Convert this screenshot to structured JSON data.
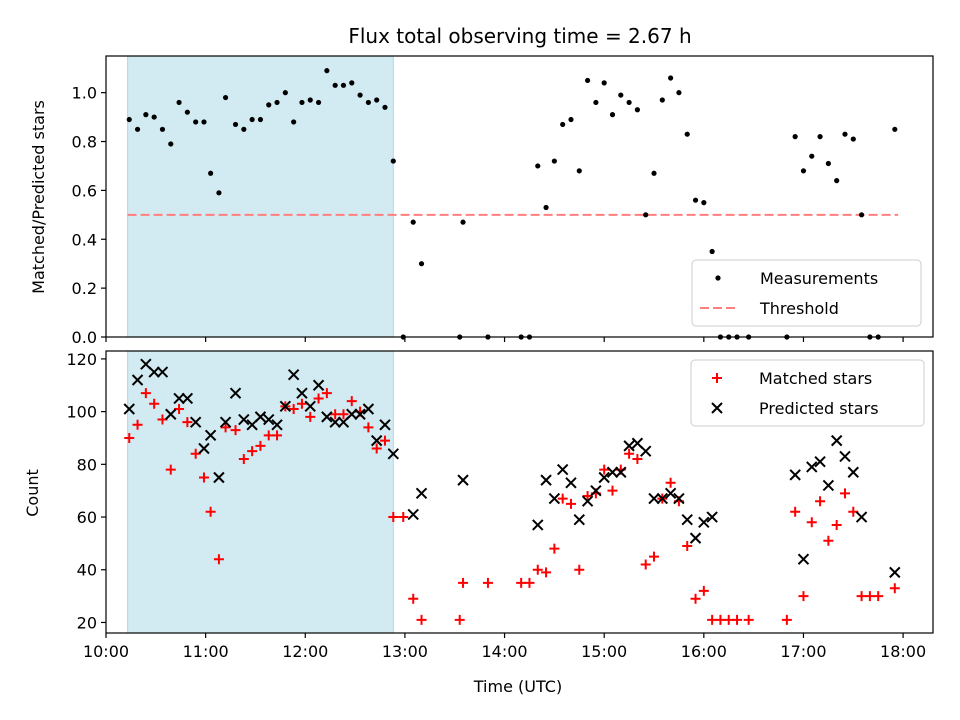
{
  "figure": {
    "title": "Flux total observing time = 2.67 h",
    "xlabel": "Time (UTC)"
  },
  "colors": {
    "shade": "#add8e6",
    "measurement": "#000000",
    "threshold": "#ff7f7f",
    "matched": "#ff0000",
    "predicted": "#000000"
  },
  "chart_data": [
    {
      "type": "scatter",
      "ylabel": "Matched/Predicted stars",
      "xlim": [
        "10:00",
        "18:18"
      ],
      "ylim": [
        0,
        1.15
      ],
      "x_ticks": [
        "10:00",
        "11:00",
        "12:00",
        "13:00",
        "14:00",
        "15:00",
        "16:00",
        "17:00",
        "18:00"
      ],
      "y_ticks": [
        "0.0",
        "0.2",
        "0.4",
        "0.6",
        "0.8",
        "1.0"
      ],
      "shaded_span": [
        "10:13",
        "12:53"
      ],
      "threshold": {
        "name": "Threshold",
        "value": 0.5,
        "x": [
          "10:13",
          "17:57"
        ]
      },
      "legend": {
        "position": "lower right",
        "entries": [
          "Measurements",
          "Threshold"
        ]
      },
      "series": [
        {
          "name": "Measurements",
          "points": [
            [
              "10:14",
              0.89
            ],
            [
              "10:19",
              0.85
            ],
            [
              "10:24",
              0.91
            ],
            [
              "10:29",
              0.9
            ],
            [
              "10:34",
              0.85
            ],
            [
              "10:39",
              0.79
            ],
            [
              "10:44",
              0.96
            ],
            [
              "10:49",
              0.92
            ],
            [
              "10:54",
              0.88
            ],
            [
              "10:59",
              0.88
            ],
            [
              "11:03",
              0.67
            ],
            [
              "11:08",
              0.59
            ],
            [
              "11:12",
              0.98
            ],
            [
              "11:18",
              0.87
            ],
            [
              "11:23",
              0.85
            ],
            [
              "11:28",
              0.89
            ],
            [
              "11:33",
              0.89
            ],
            [
              "11:38",
              0.95
            ],
            [
              "11:43",
              0.96
            ],
            [
              "11:48",
              1.0
            ],
            [
              "11:53",
              0.88
            ],
            [
              "11:58",
              0.96
            ],
            [
              "12:03",
              0.97
            ],
            [
              "12:08",
              0.96
            ],
            [
              "12:13",
              1.09
            ],
            [
              "12:18",
              1.03
            ],
            [
              "12:23",
              1.03
            ],
            [
              "12:28",
              1.04
            ],
            [
              "12:33",
              0.99
            ],
            [
              "12:38",
              0.96
            ],
            [
              "12:43",
              0.97
            ],
            [
              "12:48",
              0.94
            ],
            [
              "12:53",
              0.72
            ],
            [
              "12:59",
              0.0
            ],
            [
              "13:05",
              0.47
            ],
            [
              "13:10",
              0.3
            ],
            [
              "13:33",
              0.0
            ],
            [
              "13:35",
              0.47
            ],
            [
              "13:50",
              0.0
            ],
            [
              "14:10",
              0.0
            ],
            [
              "14:15",
              0.0
            ],
            [
              "14:20",
              0.7
            ],
            [
              "14:25",
              0.53
            ],
            [
              "14:30",
              0.72
            ],
            [
              "14:35",
              0.87
            ],
            [
              "14:40",
              0.89
            ],
            [
              "14:45",
              0.68
            ],
            [
              "14:50",
              1.05
            ],
            [
              "14:55",
              0.96
            ],
            [
              "15:00",
              1.04
            ],
            [
              "15:05",
              0.91
            ],
            [
              "15:10",
              0.99
            ],
            [
              "15:15",
              0.96
            ],
            [
              "15:20",
              0.93
            ],
            [
              "15:25",
              0.5
            ],
            [
              "15:30",
              0.67
            ],
            [
              "15:35",
              0.97
            ],
            [
              "15:40",
              1.06
            ],
            [
              "15:45",
              1.0
            ],
            [
              "15:50",
              0.83
            ],
            [
              "15:55",
              0.56
            ],
            [
              "16:00",
              0.55
            ],
            [
              "16:05",
              0.35
            ],
            [
              "16:10",
              0.0
            ],
            [
              "16:15",
              0.0
            ],
            [
              "16:20",
              0.0
            ],
            [
              "16:27",
              0.0
            ],
            [
              "16:50",
              0.0
            ],
            [
              "16:55",
              0.82
            ],
            [
              "17:00",
              0.68
            ],
            [
              "17:05",
              0.74
            ],
            [
              "17:10",
              0.82
            ],
            [
              "17:15",
              0.71
            ],
            [
              "17:20",
              0.64
            ],
            [
              "17:25",
              0.83
            ],
            [
              "17:30",
              0.81
            ],
            [
              "17:35",
              0.5
            ],
            [
              "17:40",
              0.0
            ],
            [
              "17:45",
              0.0
            ],
            [
              "17:55",
              0.85
            ]
          ]
        }
      ]
    },
    {
      "type": "scatter",
      "ylabel": "Count",
      "xlim": [
        "10:00",
        "18:18"
      ],
      "ylim": [
        16,
        123
      ],
      "x_ticks": [
        "10:00",
        "11:00",
        "12:00",
        "13:00",
        "14:00",
        "15:00",
        "16:00",
        "17:00",
        "18:00"
      ],
      "x_ticklabels": [
        "10:00",
        "11:00",
        "12:00",
        "13:00",
        "14:00",
        "15:00",
        "16:00",
        "17:00",
        "18:00"
      ],
      "y_ticks": [
        "20",
        "40",
        "60",
        "80",
        "100",
        "120"
      ],
      "shaded_span": [
        "10:13",
        "12:53"
      ],
      "legend": {
        "position": "upper right",
        "entries": [
          "Matched stars",
          "Predicted stars"
        ]
      },
      "series": [
        {
          "name": "Matched stars",
          "marker": "plus",
          "points": [
            [
              "10:14",
              90
            ],
            [
              "10:19",
              95
            ],
            [
              "10:24",
              107
            ],
            [
              "10:29",
              103
            ],
            [
              "10:34",
              97
            ],
            [
              "10:39",
              78
            ],
            [
              "10:44",
              101
            ],
            [
              "10:49",
              96
            ],
            [
              "10:54",
              84
            ],
            [
              "10:59",
              75
            ],
            [
              "11:03",
              62
            ],
            [
              "11:08",
              44
            ],
            [
              "11:12",
              94
            ],
            [
              "11:18",
              93
            ],
            [
              "11:23",
              82
            ],
            [
              "11:28",
              85
            ],
            [
              "11:33",
              87
            ],
            [
              "11:38",
              91
            ],
            [
              "11:43",
              91
            ],
            [
              "11:48",
              102
            ],
            [
              "11:53",
              101
            ],
            [
              "11:58",
              103
            ],
            [
              "12:03",
              98
            ],
            [
              "12:08",
              105
            ],
            [
              "12:13",
              107
            ],
            [
              "12:18",
              99
            ],
            [
              "12:23",
              99
            ],
            [
              "12:28",
              104
            ],
            [
              "12:33",
              100
            ],
            [
              "12:38",
              94
            ],
            [
              "12:43",
              86
            ],
            [
              "12:48",
              89
            ],
            [
              "12:53",
              60
            ],
            [
              "12:59",
              60
            ],
            [
              "13:05",
              29
            ],
            [
              "13:10",
              21
            ],
            [
              "13:33",
              21
            ],
            [
              "13:35",
              35
            ],
            [
              "13:50",
              35
            ],
            [
              "14:10",
              35
            ],
            [
              "14:15",
              35
            ],
            [
              "14:20",
              40
            ],
            [
              "14:25",
              39
            ],
            [
              "14:30",
              48
            ],
            [
              "14:35",
              67
            ],
            [
              "14:40",
              65
            ],
            [
              "14:45",
              40
            ],
            [
              "14:50",
              68
            ],
            [
              "14:55",
              69
            ],
            [
              "15:00",
              78
            ],
            [
              "15:05",
              70
            ],
            [
              "15:10",
              78
            ],
            [
              "15:15",
              84
            ],
            [
              "15:20",
              82
            ],
            [
              "15:25",
              42
            ],
            [
              "15:30",
              45
            ],
            [
              "15:35",
              67
            ],
            [
              "15:40",
              73
            ],
            [
              "15:45",
              66
            ],
            [
              "15:50",
              49
            ],
            [
              "15:55",
              29
            ],
            [
              "16:00",
              32
            ],
            [
              "16:05",
              21
            ],
            [
              "16:10",
              21
            ],
            [
              "16:15",
              21
            ],
            [
              "16:20",
              21
            ],
            [
              "16:27",
              21
            ],
            [
              "16:50",
              21
            ],
            [
              "16:55",
              62
            ],
            [
              "17:00",
              30
            ],
            [
              "17:05",
              58
            ],
            [
              "17:10",
              66
            ],
            [
              "17:15",
              51
            ],
            [
              "17:20",
              57
            ],
            [
              "17:25",
              69
            ],
            [
              "17:30",
              62
            ],
            [
              "17:35",
              30
            ],
            [
              "17:40",
              30
            ],
            [
              "17:45",
              30
            ],
            [
              "17:55",
              33
            ]
          ]
        },
        {
          "name": "Predicted stars",
          "marker": "x",
          "points": [
            [
              "10:14",
              101
            ],
            [
              "10:19",
              112
            ],
            [
              "10:24",
              118
            ],
            [
              "10:29",
              115
            ],
            [
              "10:34",
              115
            ],
            [
              "10:39",
              99
            ],
            [
              "10:44",
              105
            ],
            [
              "10:49",
              105
            ],
            [
              "10:54",
              96
            ],
            [
              "10:59",
              86
            ],
            [
              "11:03",
              91
            ],
            [
              "11:08",
              75
            ],
            [
              "11:12",
              96
            ],
            [
              "11:18",
              107
            ],
            [
              "11:23",
              97
            ],
            [
              "11:28",
              95
            ],
            [
              "11:33",
              98
            ],
            [
              "11:38",
              97
            ],
            [
              "11:43",
              95
            ],
            [
              "11:48",
              102
            ],
            [
              "11:53",
              114
            ],
            [
              "11:58",
              107
            ],
            [
              "12:03",
              102
            ],
            [
              "12:08",
              110
            ],
            [
              "12:13",
              98
            ],
            [
              "12:18",
              96
            ],
            [
              "12:23",
              96
            ],
            [
              "12:28",
              99
            ],
            [
              "12:33",
              99
            ],
            [
              "12:38",
              101
            ],
            [
              "12:43",
              89
            ],
            [
              "12:48",
              95
            ],
            [
              "12:53",
              84
            ],
            [
              "13:05",
              61
            ],
            [
              "13:10",
              69
            ],
            [
              "13:35",
              74
            ],
            [
              "14:20",
              57
            ],
            [
              "14:25",
              74
            ],
            [
              "14:30",
              67
            ],
            [
              "14:35",
              78
            ],
            [
              "14:40",
              73
            ],
            [
              "14:45",
              59
            ],
            [
              "14:50",
              66
            ],
            [
              "14:55",
              70
            ],
            [
              "15:00",
              75
            ],
            [
              "15:05",
              77
            ],
            [
              "15:10",
              77
            ],
            [
              "15:15",
              87
            ],
            [
              "15:20",
              88
            ],
            [
              "15:25",
              85
            ],
            [
              "15:30",
              67
            ],
            [
              "15:35",
              67
            ],
            [
              "15:40",
              69
            ],
            [
              "15:45",
              67
            ],
            [
              "15:50",
              59
            ],
            [
              "15:55",
              52
            ],
            [
              "16:00",
              58
            ],
            [
              "16:05",
              60
            ],
            [
              "16:55",
              76
            ],
            [
              "17:00",
              44
            ],
            [
              "17:05",
              79
            ],
            [
              "17:10",
              81
            ],
            [
              "17:15",
              72
            ],
            [
              "17:20",
              89
            ],
            [
              "17:25",
              83
            ],
            [
              "17:30",
              77
            ],
            [
              "17:35",
              60
            ],
            [
              "17:55",
              39
            ]
          ]
        }
      ]
    }
  ]
}
